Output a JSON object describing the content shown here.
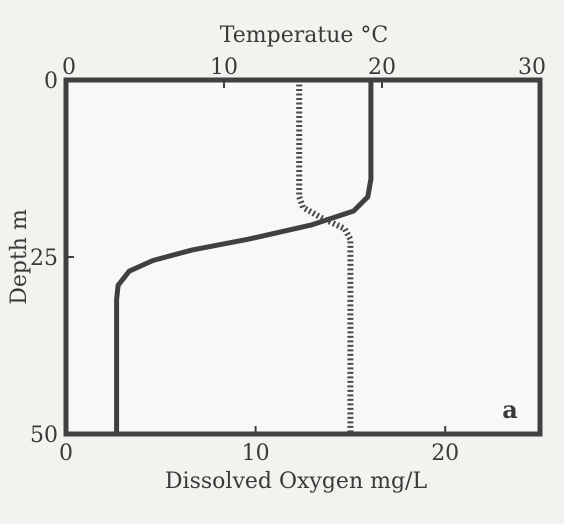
{
  "chart_data": {
    "type": "line",
    "panel_label": "a",
    "top_axis": {
      "label": "Temperatue °C",
      "range": [
        0,
        30
      ],
      "ticks": [
        0,
        10,
        20,
        30
      ],
      "tick_labels": [
        "0",
        "10",
        "20",
        "30"
      ]
    },
    "bottom_axis": {
      "label": "Dissolved Oxygen  mg/L",
      "range": [
        0,
        25
      ],
      "ticks": [
        0,
        10,
        20
      ],
      "tick_labels": [
        "0",
        "10",
        "20"
      ]
    },
    "left_axis": {
      "label": "Depth m",
      "range": [
        0,
        50
      ],
      "reversed": true,
      "ticks": [
        0,
        25,
        50
      ],
      "tick_labels": [
        "0",
        "25",
        "50"
      ]
    },
    "grid": false,
    "series": [
      {
        "axis": "top",
        "style": "solid",
        "color": "#404040",
        "points": [
          [
            19.3,
            0
          ],
          [
            19.3,
            14
          ],
          [
            19.1,
            16.5
          ],
          [
            18.2,
            18.5
          ],
          [
            15.5,
            20.5
          ],
          [
            11.5,
            22.5
          ],
          [
            8,
            24
          ],
          [
            5.5,
            25.5
          ],
          [
            4,
            27
          ],
          [
            3.3,
            29
          ],
          [
            3.2,
            31
          ],
          [
            3.2,
            50
          ]
        ]
      },
      {
        "axis": "bottom",
        "style": "dotted",
        "color": "#4a4a4a",
        "points": [
          [
            12.3,
            0
          ],
          [
            12.3,
            16.5
          ],
          [
            12.5,
            18
          ],
          [
            13.5,
            19.5
          ],
          [
            14.7,
            21
          ],
          [
            15,
            22.5
          ],
          [
            15,
            50
          ]
        ]
      }
    ]
  }
}
